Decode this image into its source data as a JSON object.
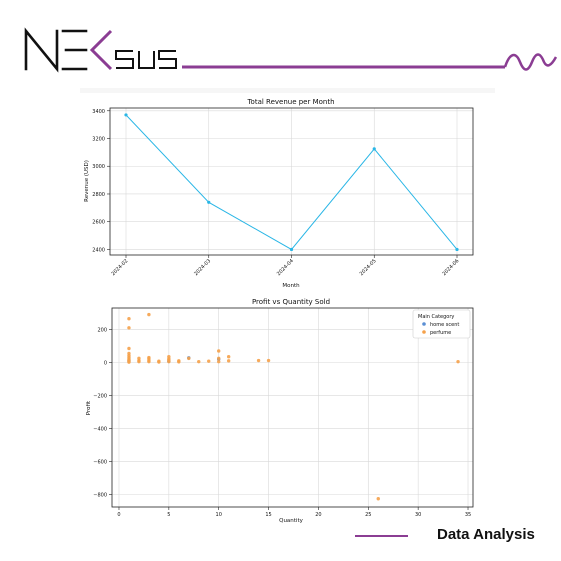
{
  "brand": {
    "name": "NEKSUS",
    "accent_color": "#8b3d93",
    "footer_title": "Data Analysis"
  },
  "chart_data": [
    {
      "type": "line",
      "title": "Total Revenue per Month",
      "xlabel": "Month",
      "ylabel": "Revenue (USD)",
      "categories": [
        "2024-02",
        "2024-03",
        "2024-04",
        "2024-05",
        "2024-06"
      ],
      "series": [
        {
          "values": [
            3370,
            2740,
            2400,
            3125,
            2400
          ],
          "color": "#29b6e6"
        }
      ],
      "ylim": [
        2360,
        3420
      ],
      "yticks": [
        2400,
        2600,
        2800,
        3000,
        3200,
        3400
      ],
      "grid": true
    },
    {
      "type": "scatter",
      "title": "Profit vs Quantity Sold",
      "xlabel": "Quantity",
      "ylabel": "Profit",
      "xlim": [
        -0.7,
        35.5
      ],
      "ylim": [
        -875,
        330
      ],
      "xticks": [
        0,
        5,
        10,
        15,
        20,
        25,
        30,
        35
      ],
      "yticks": [
        -800,
        -600,
        -400,
        -200,
        0,
        200
      ],
      "grid": true,
      "legend": {
        "title": "Main Category",
        "position": "top-right"
      },
      "series": [
        {
          "name": "home scent",
          "color": "#5b8fd4",
          "points": [
            [
              7,
              28
            ],
            [
              10,
              20
            ],
            [
              1,
              10
            ],
            [
              5,
              8
            ]
          ]
        },
        {
          "name": "perfume",
          "color": "#f5a14a",
          "points": [
            [
              1,
              265
            ],
            [
              1,
              210
            ],
            [
              1,
              85
            ],
            [
              1,
              55
            ],
            [
              1,
              42
            ],
            [
              1,
              32
            ],
            [
              1,
              22
            ],
            [
              1,
              15
            ],
            [
              1,
              8
            ],
            [
              1,
              2
            ],
            [
              2,
              25
            ],
            [
              2,
              12
            ],
            [
              2,
              5
            ],
            [
              3,
              290
            ],
            [
              3,
              30
            ],
            [
              3,
              22
            ],
            [
              3,
              12
            ],
            [
              3,
              5
            ],
            [
              4,
              8
            ],
            [
              4,
              3
            ],
            [
              5,
              35
            ],
            [
              5,
              22
            ],
            [
              5,
              15
            ],
            [
              5,
              5
            ],
            [
              6,
              10
            ],
            [
              6,
              4
            ],
            [
              7,
              25
            ],
            [
              8,
              5
            ],
            [
              9,
              8
            ],
            [
              10,
              70
            ],
            [
              10,
              25
            ],
            [
              10,
              5
            ],
            [
              11,
              35
            ],
            [
              11,
              10
            ],
            [
              14,
              12
            ],
            [
              15,
              12
            ],
            [
              26,
              -825
            ],
            [
              34,
              5
            ]
          ]
        }
      ]
    }
  ]
}
